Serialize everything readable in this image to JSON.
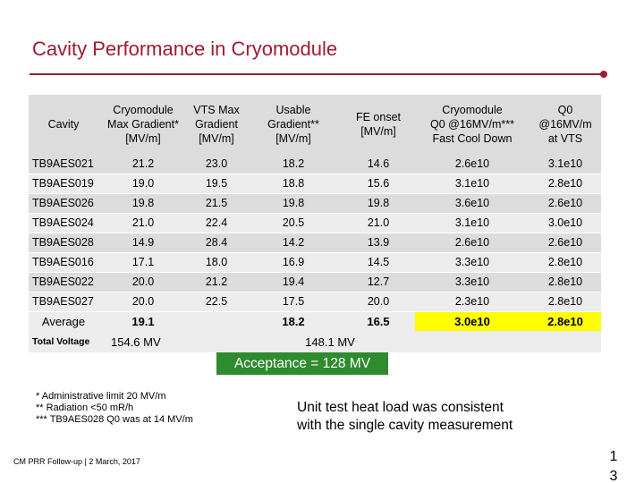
{
  "slide": {
    "title": "Cavity Performance in Cryomodule",
    "footer": "CM PRR Follow-up | 2 March, 2017",
    "page_number": [
      "1",
      "3"
    ]
  },
  "table": {
    "headers": {
      "cavity": "Cavity",
      "cm_max": [
        "Cryomodule",
        "Max Gradient*",
        "[MV/m]"
      ],
      "vts_max": [
        "VTS Max",
        "Gradient",
        "[MV/m]"
      ],
      "usable": [
        "Usable",
        "Gradient**",
        "[MV/m]"
      ],
      "fe_onset": [
        "FE onset",
        "[MV/m]"
      ],
      "cm_q0": [
        "Cryomodule",
        "Q0 @16MV/m***",
        "Fast Cool Down"
      ],
      "vts_q0": [
        "Q0",
        "@16MV/m",
        "at VTS"
      ]
    },
    "rows": [
      {
        "cavity": "TB9AES021",
        "cm_max": "21.2",
        "vts_max": "23.0",
        "usable": "18.2",
        "fe_onset": "14.6",
        "cm_q0": "2.6e10",
        "vts_q0": "3.1e10"
      },
      {
        "cavity": "TB9AES019",
        "cm_max": "19.0",
        "vts_max": "19.5",
        "usable": "18.8",
        "fe_onset": "15.6",
        "cm_q0": "3.1e10",
        "vts_q0": "2.8e10"
      },
      {
        "cavity": "TB9AES026",
        "cm_max": "19.8",
        "vts_max": "21.5",
        "usable": "19.8",
        "fe_onset": "19.8",
        "cm_q0": "3.6e10",
        "vts_q0": "2.6e10"
      },
      {
        "cavity": "TB9AES024",
        "cm_max": "21.0",
        "vts_max": "22.4",
        "usable": "20.5",
        "fe_onset": "21.0",
        "cm_q0": "3.1e10",
        "vts_q0": "3.0e10"
      },
      {
        "cavity": "TB9AES028",
        "cm_max": "14.9",
        "vts_max": "28.4",
        "usable": "14.2",
        "fe_onset": "13.9",
        "cm_q0": "2.6e10",
        "vts_q0": "2.6e10"
      },
      {
        "cavity": "TB9AES016",
        "cm_max": "17.1",
        "vts_max": "18.0",
        "usable": "16.9",
        "fe_onset": "14.5",
        "cm_q0": "3.3e10",
        "vts_q0": "2.8e10"
      },
      {
        "cavity": "TB9AES022",
        "cm_max": "20.0",
        "vts_max": "21.2",
        "usable": "19.4",
        "fe_onset": "12.7",
        "cm_q0": "3.3e10",
        "vts_q0": "2.8e10"
      },
      {
        "cavity": "TB9AES027",
        "cm_max": "20.0",
        "vts_max": "22.5",
        "usable": "17.5",
        "fe_onset": "20.0",
        "cm_q0": "2.3e10",
        "vts_q0": "2.8e10"
      }
    ],
    "average": {
      "label": "Average",
      "cm_max": "19.1",
      "vts_max": "",
      "usable": "18.2",
      "fe_onset": "16.5",
      "cm_q0": "3.0e10",
      "vts_q0": "2.8e10"
    },
    "total_voltage": {
      "label": "Total Voltage",
      "cm_max": "154.6 MV",
      "usable": "148.1 MV"
    }
  },
  "acceptance": "Acceptance = 128 MV",
  "notes": [
    "* Administrative limit 20 MV/m",
    "** Radiation <50 mR/h",
    "*** TB9AES028 Q0 was at 14 MV/m"
  ],
  "unit_test": [
    "Unit test heat load was consistent",
    "with the single cavity measurement"
  ],
  "colors": {
    "title": "#9e1b32",
    "acceptance_bg": "#2e8b2e",
    "highlight": "#ffff00"
  }
}
